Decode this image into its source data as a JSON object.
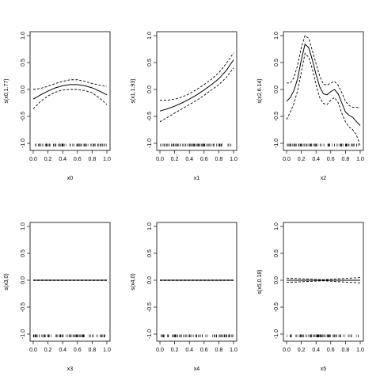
{
  "chart_data": [
    {
      "type": "line",
      "xlabel": "x0",
      "ylabel": "s(x0,1.77)",
      "xlim": [
        0,
        1
      ],
      "ylim": [
        -1,
        1
      ],
      "xticks": [
        "0.0",
        "0.2",
        "0.4",
        "0.6",
        "0.8",
        "1.0"
      ],
      "yticks": [
        "-1.0",
        "-0.5",
        "0.0",
        "0.5",
        "1.0"
      ],
      "x": [
        0,
        0.1,
        0.2,
        0.3,
        0.4,
        0.5,
        0.6,
        0.7,
        0.8,
        0.9,
        1.0
      ],
      "series": [
        {
          "style": "solid",
          "values": [
            -0.18,
            -0.1,
            -0.03,
            0.03,
            0.07,
            0.09,
            0.09,
            0.07,
            0.03,
            -0.03,
            -0.1
          ]
        },
        {
          "style": "dashed",
          "values": [
            0.0,
            0.02,
            0.06,
            0.11,
            0.15,
            0.18,
            0.18,
            0.15,
            0.11,
            0.08,
            0.06
          ]
        },
        {
          "style": "dashed",
          "values": [
            -0.36,
            -0.22,
            -0.12,
            -0.05,
            -0.01,
            0.0,
            0.0,
            -0.02,
            -0.06,
            -0.16,
            -0.28
          ]
        }
      ]
    },
    {
      "type": "line",
      "xlabel": "x1",
      "ylabel": "s(x1,1.93)",
      "xlim": [
        0,
        1
      ],
      "ylim": [
        -1,
        1
      ],
      "xticks": [
        "0.0",
        "0.2",
        "0.4",
        "0.6",
        "0.8",
        "1.0"
      ],
      "yticks": [
        "-1.0",
        "-0.5",
        "0.0",
        "0.5",
        "1.0"
      ],
      "x": [
        0,
        0.1,
        0.2,
        0.3,
        0.4,
        0.5,
        0.6,
        0.7,
        0.8,
        0.9,
        1.0
      ],
      "series": [
        {
          "style": "solid",
          "values": [
            -0.4,
            -0.36,
            -0.31,
            -0.25,
            -0.18,
            -0.1,
            -0.01,
            0.09,
            0.2,
            0.35,
            0.55
          ]
        },
        {
          "style": "dashed",
          "values": [
            -0.2,
            -0.2,
            -0.18,
            -0.14,
            -0.08,
            0.0,
            0.09,
            0.19,
            0.31,
            0.48,
            0.68
          ]
        },
        {
          "style": "dashed",
          "values": [
            -0.6,
            -0.52,
            -0.44,
            -0.36,
            -0.28,
            -0.2,
            -0.11,
            -0.01,
            0.09,
            0.22,
            0.4
          ]
        }
      ]
    },
    {
      "type": "line",
      "xlabel": "x2",
      "ylabel": "s(x2,6.14)",
      "xlim": [
        0,
        1
      ],
      "ylim": [
        -1,
        1
      ],
      "xticks": [
        "0.0",
        "0.2",
        "0.4",
        "0.6",
        "0.8",
        "1.0"
      ],
      "yticks": [
        "-1.0",
        "-0.5",
        "0.0",
        "0.5",
        "1.0"
      ],
      "x": [
        0,
        0.05,
        0.1,
        0.15,
        0.2,
        0.25,
        0.3,
        0.35,
        0.4,
        0.45,
        0.5,
        0.55,
        0.6,
        0.65,
        0.7,
        0.75,
        0.8,
        0.85,
        0.9,
        0.95,
        1.0
      ],
      "series": [
        {
          "style": "solid",
          "values": [
            -0.22,
            -0.15,
            -0.02,
            0.2,
            0.55,
            0.84,
            0.78,
            0.55,
            0.28,
            0.05,
            -0.08,
            -0.1,
            -0.04,
            0.0,
            -0.08,
            -0.25,
            -0.42,
            -0.48,
            -0.52,
            -0.6,
            -0.67
          ]
        },
        {
          "style": "dashed",
          "values": [
            0.12,
            0.12,
            0.22,
            0.45,
            0.78,
            1.0,
            0.95,
            0.72,
            0.48,
            0.25,
            0.1,
            0.08,
            0.12,
            0.15,
            0.08,
            -0.06,
            -0.22,
            -0.3,
            -0.33,
            -0.33,
            -0.34
          ]
        },
        {
          "style": "dashed",
          "values": [
            -0.56,
            -0.42,
            -0.26,
            -0.02,
            0.32,
            0.67,
            0.6,
            0.38,
            0.08,
            -0.15,
            -0.26,
            -0.28,
            -0.2,
            -0.15,
            -0.24,
            -0.44,
            -0.6,
            -0.7,
            -0.75,
            -0.85,
            -1.05
          ]
        }
      ]
    },
    {
      "type": "line",
      "xlabel": "x3",
      "ylabel": "s(x3,0)",
      "xlim": [
        0,
        1
      ],
      "ylim": [
        -1,
        1
      ],
      "xticks": [
        "0.0",
        "0.2",
        "0.4",
        "0.6",
        "0.8",
        "1.0"
      ],
      "yticks": [
        "-1.0",
        "-0.5",
        "0.0",
        "0.5",
        "1.0"
      ],
      "x": [
        0,
        1.0
      ],
      "series": [
        {
          "style": "solid",
          "values": [
            0,
            0
          ]
        },
        {
          "style": "dashed",
          "values": [
            0.004,
            0.004
          ]
        },
        {
          "style": "dashed",
          "values": [
            -0.004,
            -0.004
          ]
        }
      ]
    },
    {
      "type": "line",
      "xlabel": "x4",
      "ylabel": "s(x4,0)",
      "xlim": [
        0,
        1
      ],
      "ylim": [
        -1,
        1
      ],
      "xticks": [
        "0.0",
        "0.2",
        "0.4",
        "0.6",
        "0.8",
        "1.0"
      ],
      "yticks": [
        "-1.0",
        "-0.5",
        "0.0",
        "0.5",
        "1.0"
      ],
      "x": [
        0,
        1.0
      ],
      "series": [
        {
          "style": "solid",
          "values": [
            0,
            0
          ]
        },
        {
          "style": "dashed",
          "values": [
            0.004,
            0.004
          ]
        },
        {
          "style": "dashed",
          "values": [
            -0.004,
            -0.004
          ]
        }
      ]
    },
    {
      "type": "line",
      "xlabel": "x5",
      "ylabel": "s(x5,0.18)",
      "xlim": [
        0,
        1
      ],
      "ylim": [
        -1,
        1
      ],
      "xticks": [
        "0.0",
        "0.2",
        "0.4",
        "0.6",
        "0.8",
        "1.0"
      ],
      "yticks": [
        "-1.0",
        "-0.5",
        "0.0",
        "0.5",
        "1.0"
      ],
      "x": [
        0,
        0.5,
        1.0
      ],
      "series": [
        {
          "style": "solid",
          "values": [
            0.0,
            0.0,
            0.0
          ]
        },
        {
          "style": "dashed",
          "values": [
            0.04,
            0.01,
            0.05
          ]
        },
        {
          "style": "dashed",
          "values": [
            -0.04,
            -0.01,
            -0.05
          ]
        }
      ]
    }
  ]
}
